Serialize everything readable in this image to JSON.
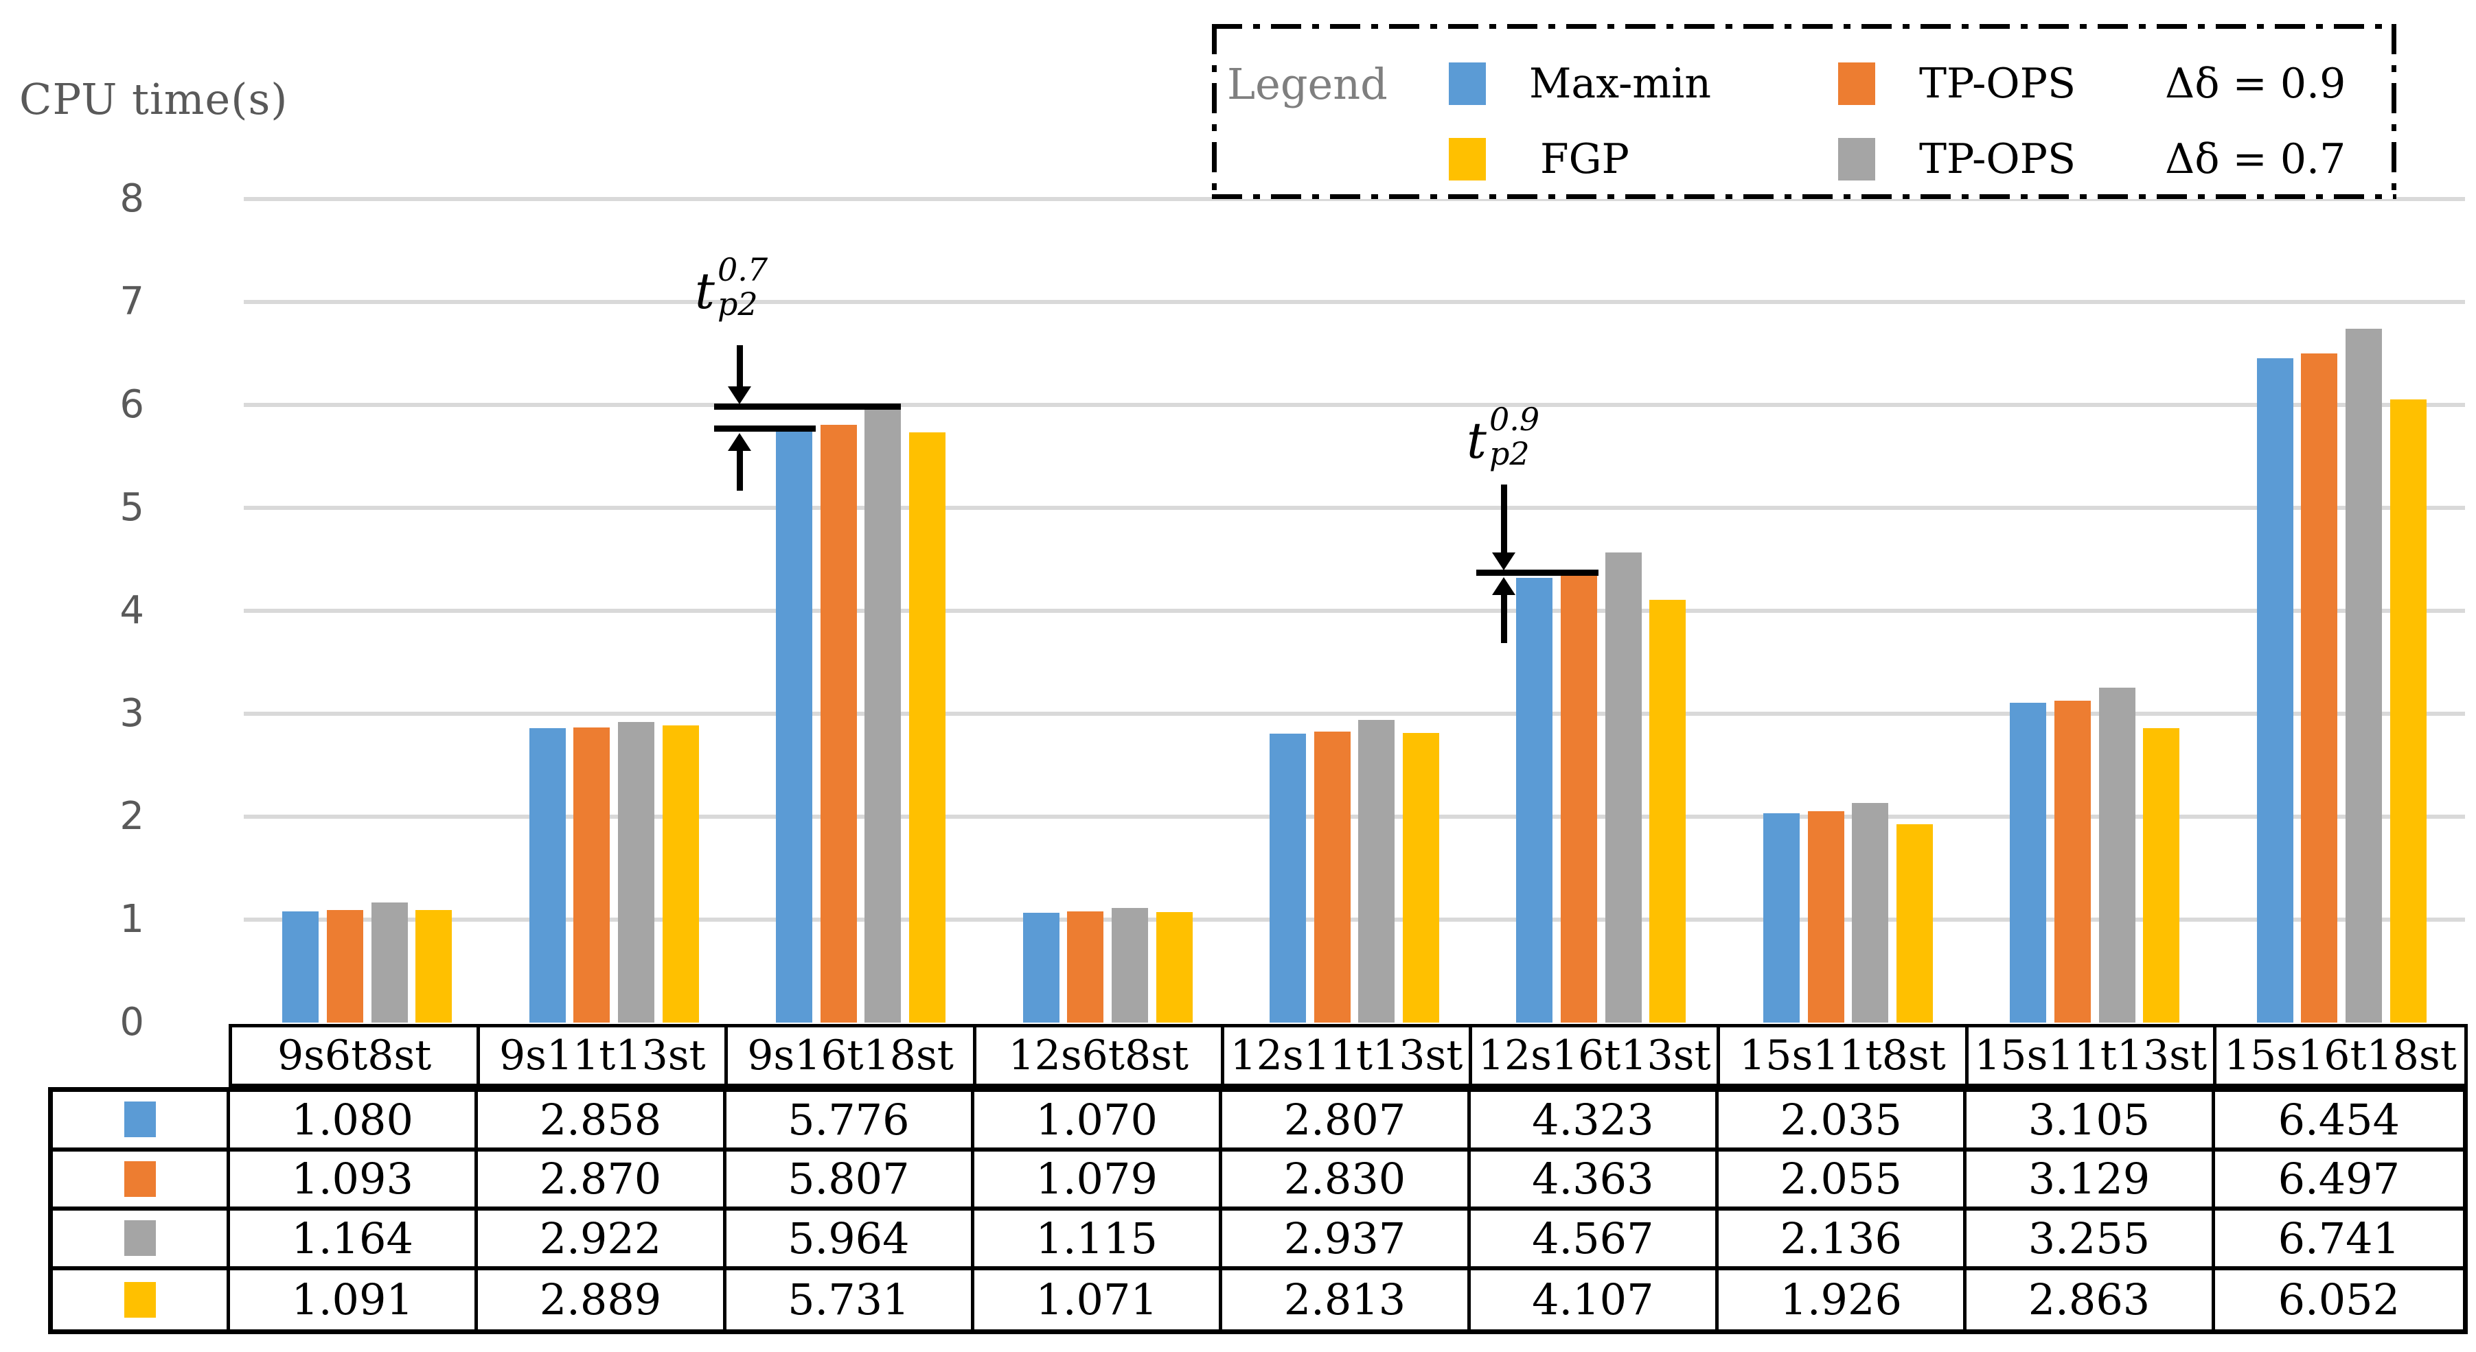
{
  "title": "CPU time(s)",
  "legend": {
    "label": "Legend",
    "items": [
      {
        "name": "Max-min",
        "color": "#5B9BD5",
        "param": ""
      },
      {
        "name": "TP-OPS",
        "color": "#ED7D31",
        "param": "Δδ = 0.9"
      },
      {
        "name": "FGP",
        "color": "#FFC000",
        "param": ""
      },
      {
        "name": "TP-OPS",
        "color": "#A5A5A5",
        "param": "Δδ = 0.7"
      }
    ]
  },
  "annotations": [
    {
      "base": "t",
      "sub": "p2",
      "sup": "0.7"
    },
    {
      "base": "t",
      "sub": "p2",
      "sup": "0.9"
    }
  ],
  "chart_data": {
    "type": "bar",
    "title": "CPU time(s)",
    "ylabel": "CPU time(s)",
    "xlabel": "",
    "categories": [
      "9s6t8st",
      "9s11t13st",
      "9s16t18st",
      "12s6t8st",
      "12s11t13st",
      "12s16t13st",
      "15s11t8st",
      "15s11t13st",
      "15s16t18st"
    ],
    "series": [
      {
        "name": "Max-min",
        "color": "#5B9BD5",
        "values": [
          1.08,
          2.858,
          5.776,
          1.07,
          2.807,
          4.323,
          2.035,
          3.105,
          6.454
        ]
      },
      {
        "name": "TP-OPS Δδ = 0.9",
        "color": "#ED7D31",
        "values": [
          1.093,
          2.87,
          5.807,
          1.079,
          2.83,
          4.363,
          2.055,
          3.129,
          6.497
        ]
      },
      {
        "name": "TP-OPS Δδ = 0.7",
        "color": "#A5A5A5",
        "values": [
          1.164,
          2.922,
          5.964,
          1.115,
          2.937,
          4.567,
          2.136,
          3.255,
          6.741
        ]
      },
      {
        "name": "FGP",
        "color": "#FFC000",
        "values": [
          1.091,
          2.889,
          5.731,
          1.071,
          2.813,
          4.107,
          1.926,
          2.863,
          6.052
        ]
      }
    ],
    "ylim": [
      0,
      8
    ],
    "yticks": [
      0,
      1,
      2,
      3,
      4,
      5,
      6,
      7,
      8
    ],
    "grid": true,
    "gridline_color": "#D9D9D9",
    "axis_text_color": "#595959",
    "legend_position": "top-right",
    "value_decimals": 3
  }
}
